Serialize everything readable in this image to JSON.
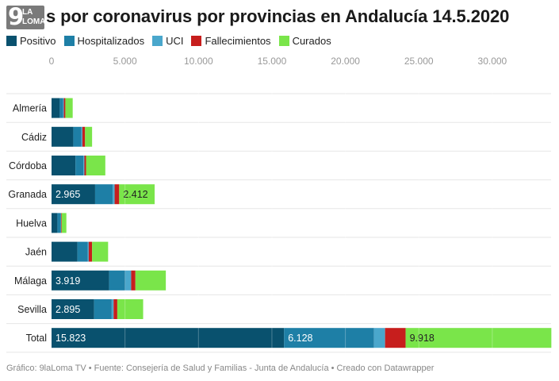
{
  "logo": {
    "number": "9",
    "line1": "LA",
    "line2": "LOMA"
  },
  "title": "s por coronavirus por provincias en Andalucía 14.5.2020",
  "legend": [
    {
      "label": "Positivo",
      "color": "#09516e"
    },
    {
      "label": "Hospitalizados",
      "color": "#1e7fa6"
    },
    {
      "label": "UCI",
      "color": "#4aa7cc"
    },
    {
      "label": "Fallecimientos",
      "color": "#c71e1d"
    },
    {
      "label": "Curados",
      "color": "#7ae54a"
    }
  ],
  "chart_data": {
    "type": "bar",
    "orientation": "horizontal",
    "stacked": true,
    "xlim": [
      0,
      34000
    ],
    "ticks": [
      0,
      5000,
      10000,
      15000,
      20000,
      25000,
      30000
    ],
    "tick_labels": [
      "0",
      "5.000",
      "10.000",
      "15.000",
      "20.000",
      "25.000",
      "30.000"
    ],
    "categories": [
      "Almería",
      "Cádiz",
      "Córdoba",
      "Granada",
      "Huelva",
      "Jaén",
      "Málaga",
      "Sevilla",
      "Total"
    ],
    "series": [
      {
        "name": "Positivo",
        "color": "#09516e",
        "values": [
          560,
          1480,
          1630,
          2965,
          400,
          1760,
          3919,
          2895,
          15823
        ]
      },
      {
        "name": "Hospitalizados",
        "color": "#1e7fa6",
        "values": [
          220,
          560,
          540,
          1200,
          220,
          700,
          1100,
          1200,
          6128
        ]
      },
      {
        "name": "UCI",
        "color": "#4aa7cc",
        "values": [
          60,
          60,
          70,
          130,
          30,
          70,
          400,
          130,
          750
        ]
      },
      {
        "name": "Fallecimientos",
        "color": "#c71e1d",
        "values": [
          100,
          180,
          110,
          310,
          40,
          230,
          290,
          250,
          1400
        ]
      },
      {
        "name": "Curados",
        "color": "#7ae54a",
        "values": [
          500,
          480,
          1310,
          2412,
          320,
          1090,
          2070,
          1760,
          9918
        ]
      }
    ],
    "data_labels": {
      "Granada": {
        "Positivo": "2.965",
        "Curados": "2.412"
      },
      "Málaga": {
        "Positivo": "3.919"
      },
      "Sevilla": {
        "Positivo": "2.895"
      },
      "Total": {
        "Positivo": "15.823",
        "Hospitalizados": "6.128",
        "Curados": "9.918"
      }
    },
    "grid": true
  },
  "footer": "Gráfico: 9laLoma TV • Fuente: Consejería de Salud y Familias - Junta de Andalucía • Creado con Datawrapper"
}
